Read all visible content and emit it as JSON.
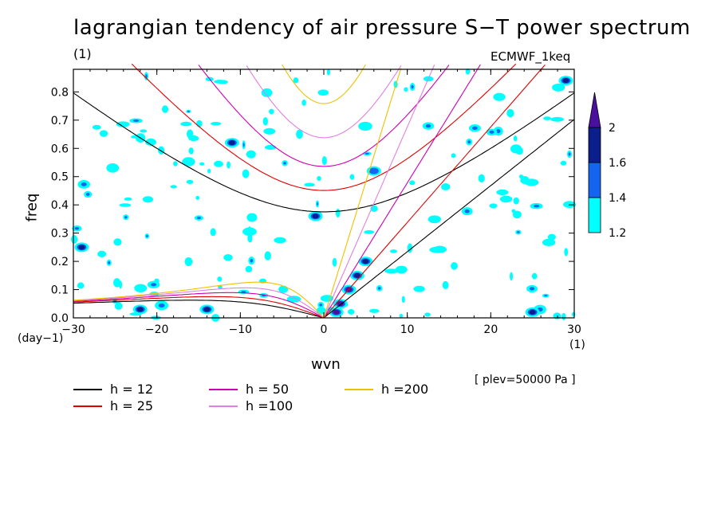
{
  "chart_data": {
    "type": "heatmap",
    "title": "lagrangian tendency of air pressure S−T power spectrum",
    "subtitle_left": "(1)",
    "subtitle_right": "ECMWF_1keq",
    "xlabel": "wvn",
    "ylabel": "freq",
    "x_unit": "(1)",
    "y_unit": "(day−1)",
    "footnote": "[ plev=50000 Pa ]",
    "xlim": [
      -30,
      30
    ],
    "ylim": [
      0,
      0.88
    ],
    "x_ticks": [
      "−30",
      "−20",
      "−10",
      "0",
      "10",
      "20",
      "30"
    ],
    "x_tick_values": [
      -30,
      -20,
      -10,
      0,
      10,
      20,
      30
    ],
    "y_ticks": [
      "0.0",
      "0.1",
      "0.2",
      "0.3",
      "0.4",
      "0.5",
      "0.6",
      "0.7",
      "0.8"
    ],
    "y_tick_values": [
      0.0,
      0.1,
      0.2,
      0.3,
      0.4,
      0.5,
      0.6,
      0.7,
      0.8
    ],
    "colorbar": {
      "levels": [
        "1.2",
        "1.4",
        "1.6",
        "2"
      ],
      "colors": [
        "#00ffff",
        "#1464f0",
        "#0a1e8c",
        "#4b0fa0"
      ]
    },
    "dispersion_curves": [
      {
        "label": "h = 12",
        "h": 12,
        "color": "#000000"
      },
      {
        "label": "h = 25",
        "h": 25,
        "color": "#e00000"
      },
      {
        "label": "h = 50",
        "h": 50,
        "color": "#d000b0"
      },
      {
        "label": "h =100",
        "h": 100,
        "color": "#e080e0"
      },
      {
        "label": "h =200",
        "h": 200,
        "color": "#f0c000"
      }
    ],
    "high_power_regions": [
      {
        "x": 2,
        "y": 0.05,
        "level": 2
      },
      {
        "x": 3,
        "y": 0.1,
        "level": 2
      },
      {
        "x": 4,
        "y": 0.15,
        "level": 1.6
      },
      {
        "x": 5,
        "y": 0.2,
        "level": 1.6
      },
      {
        "x": 1.5,
        "y": 0.02,
        "level": 2
      },
      {
        "x": 25,
        "y": 0.02,
        "level": 1.6
      },
      {
        "x": -29,
        "y": 0.25,
        "level": 1.6
      },
      {
        "x": -22,
        "y": 0.03,
        "level": 1.6
      },
      {
        "x": -14,
        "y": 0.03,
        "level": 1.6
      },
      {
        "x": -1,
        "y": 0.36,
        "level": 1.6
      },
      {
        "x": -11,
        "y": 0.62,
        "level": 1.6
      },
      {
        "x": 6,
        "y": 0.52,
        "level": 1.4
      },
      {
        "x": 29,
        "y": 0.84,
        "level": 1.6
      }
    ]
  }
}
